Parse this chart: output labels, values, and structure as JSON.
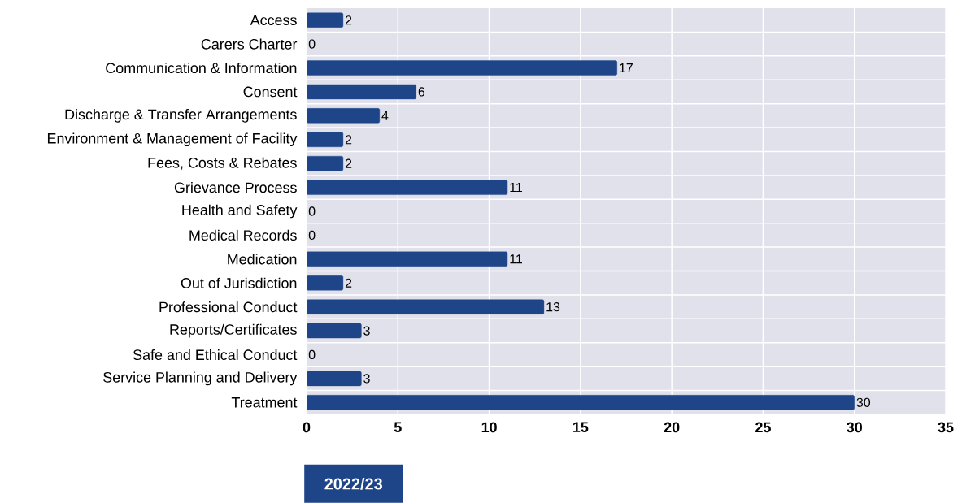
{
  "chart_data": {
    "type": "bar",
    "orientation": "horizontal",
    "categories": [
      "Access",
      "Carers Charter",
      "Communication & Information",
      "Consent",
      "Discharge & Transfer Arrangements",
      "Environment & Management of Facility",
      "Fees, Costs & Rebates",
      "Grievance Process",
      "Health and Safety",
      "Medical Records",
      "Medication",
      "Out of Jurisdiction",
      "Professional Conduct",
      "Reports/Certificates",
      "Safe and Ethical Conduct",
      "Service Planning and Delivery",
      "Treatment"
    ],
    "series": [
      {
        "name": "2022/23",
        "color": "#1f4589",
        "values": [
          2,
          0,
          17,
          6,
          4,
          2,
          2,
          11,
          0,
          0,
          11,
          2,
          13,
          3,
          0,
          3,
          30
        ]
      }
    ],
    "xlim": [
      0,
      35
    ],
    "xticks": [
      0,
      5,
      10,
      15,
      20,
      25,
      30,
      35
    ],
    "data_labels": true,
    "grid": true,
    "legend": "bottom left"
  }
}
